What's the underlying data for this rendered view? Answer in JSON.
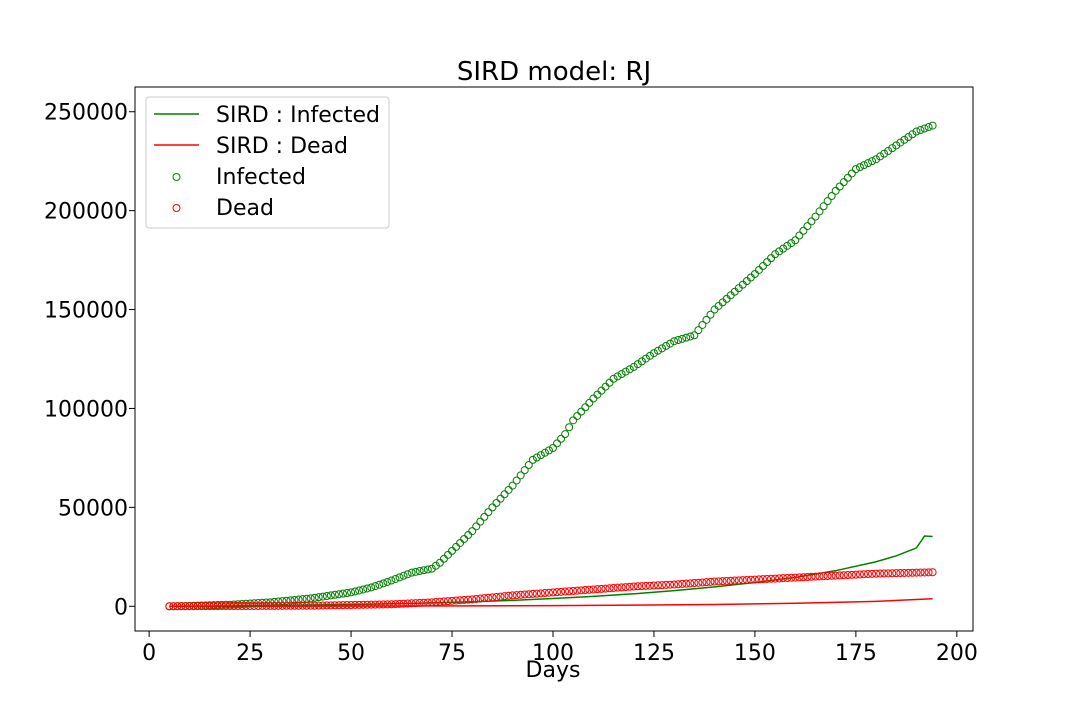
{
  "chart_data": {
    "type": "scatter",
    "title": "SIRD model: RJ",
    "xlabel": "Days",
    "ylabel": "",
    "xlim": [
      -3.5,
      204
    ],
    "ylim": [
      -12500,
      262500
    ],
    "x_ticks": [
      0,
      25,
      50,
      75,
      100,
      125,
      150,
      175,
      200
    ],
    "y_ticks": [
      0,
      50000,
      100000,
      150000,
      200000,
      250000
    ],
    "x_tick_labels": [
      "0",
      "25",
      "50",
      "75",
      "100",
      "125",
      "150",
      "175",
      "200"
    ],
    "y_tick_labels": [
      "0",
      "50000",
      "100000",
      "150000",
      "200000",
      "250000"
    ],
    "grid": false,
    "legend_position": "top-left",
    "legend": [
      "SIRD : Infected",
      "SIRD : Dead",
      "Infected",
      "Dead"
    ],
    "series": [
      {
        "name": "SIRD : Infected",
        "kind": "line",
        "color": "#008000",
        "x": [
          5,
          10,
          20,
          30,
          40,
          50,
          60,
          70,
          80,
          90,
          100,
          110,
          120,
          130,
          140,
          150,
          160,
          170,
          180,
          185,
          190,
          192,
          194
        ],
        "y": [
          0,
          60,
          200,
          400,
          650,
          900,
          1250,
          1700,
          2300,
          3000,
          3900,
          5000,
          6300,
          7900,
          9800,
          12000,
          14600,
          18000,
          22500,
          25500,
          29500,
          35500,
          35300
        ]
      },
      {
        "name": "SIRD : Dead",
        "kind": "line",
        "color": "#ff0000",
        "x": [
          5,
          20,
          40,
          60,
          80,
          100,
          120,
          140,
          160,
          180,
          194
        ],
        "y": [
          0,
          20,
          60,
          120,
          200,
          350,
          550,
          900,
          1500,
          2500,
          3800
        ]
      },
      {
        "name": "Infected",
        "kind": "scatter",
        "color": "#008000",
        "x": [
          5,
          10,
          20,
          30,
          40,
          50,
          55,
          60,
          65,
          70,
          72,
          75,
          80,
          85,
          90,
          95,
          100,
          103,
          105,
          110,
          115,
          120,
          125,
          130,
          135,
          140,
          145,
          150,
          155,
          160,
          165,
          170,
          175,
          180,
          185,
          190,
          194
        ],
        "y": [
          0,
          200,
          800,
          2000,
          4000,
          7000,
          9500,
          13000,
          17000,
          19000,
          22000,
          28000,
          38000,
          50000,
          61000,
          74000,
          80000,
          87000,
          94000,
          105000,
          115000,
          121000,
          128000,
          134000,
          137000,
          150000,
          159000,
          168000,
          178000,
          185000,
          197000,
          210000,
          221000,
          226000,
          233000,
          240000,
          243000
        ]
      },
      {
        "name": "Dead",
        "kind": "scatter",
        "color": "#ff0000",
        "x": [
          5,
          20,
          40,
          60,
          70,
          80,
          90,
          100,
          110,
          120,
          130,
          140,
          150,
          160,
          170,
          180,
          194
        ],
        "y": [
          0,
          100,
          300,
          1000,
          2000,
          3500,
          5500,
          7000,
          8500,
          10000,
          11000,
          12500,
          13500,
          14500,
          15500,
          16500,
          17200
        ]
      }
    ]
  }
}
